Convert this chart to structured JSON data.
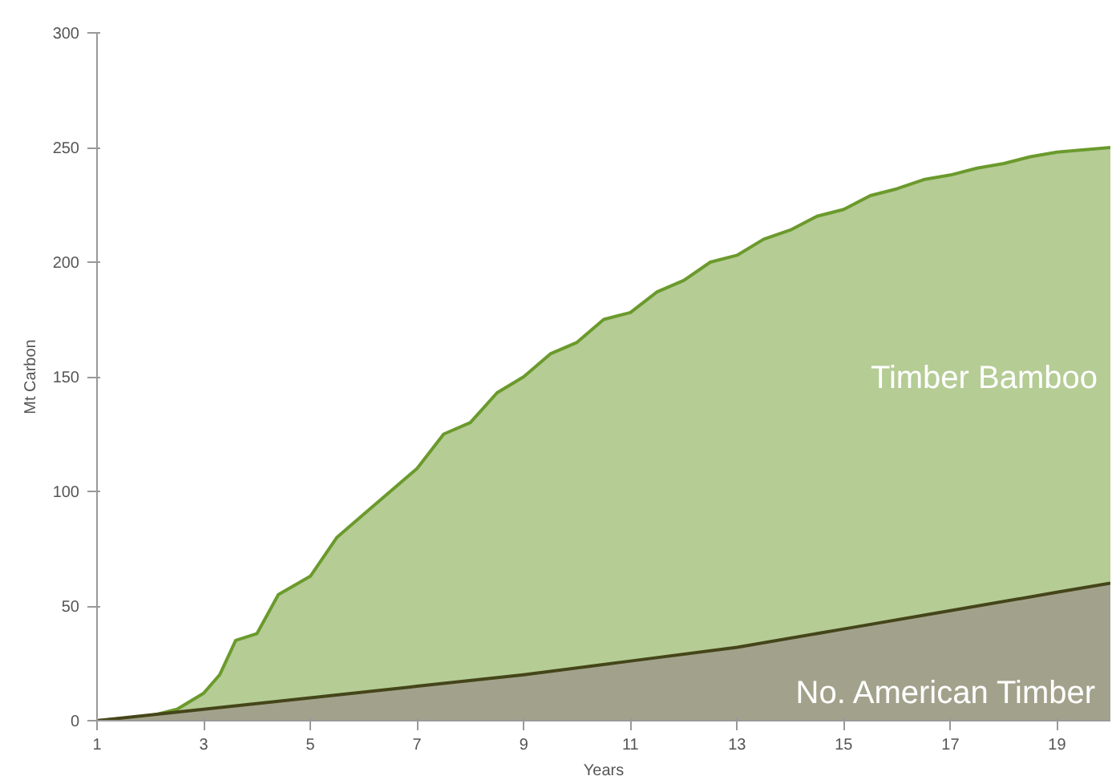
{
  "chart_data": {
    "type": "area",
    "xlabel": "Years",
    "ylabel": "Mt Carbon",
    "xlim": [
      1,
      20
    ],
    "ylim": [
      0,
      300
    ],
    "xticks": [
      1,
      3,
      5,
      7,
      9,
      11,
      13,
      15,
      17,
      19
    ],
    "yticks": [
      0,
      50,
      100,
      150,
      200,
      250,
      300
    ],
    "grid": false,
    "series": [
      {
        "name": "Timber Bamboo",
        "color": "#6b9a2c",
        "x": [
          1,
          2,
          2.5,
          3,
          3.3,
          3.6,
          4,
          4.4,
          5,
          5.5,
          6,
          6.5,
          7,
          7.5,
          8,
          8.5,
          9,
          9.5,
          10,
          10.5,
          11,
          11.5,
          12,
          12.5,
          13,
          13.5,
          14,
          14.5,
          15,
          15.5,
          16,
          16.5,
          17,
          17.5,
          18,
          18.5,
          19,
          20
        ],
        "values": [
          0,
          2,
          5,
          12,
          20,
          35,
          38,
          55,
          63,
          80,
          90,
          100,
          110,
          125,
          130,
          143,
          150,
          160,
          165,
          175,
          178,
          187,
          192,
          200,
          203,
          210,
          214,
          220,
          223,
          229,
          232,
          236,
          238,
          241,
          243,
          246,
          248,
          250
        ]
      },
      {
        "name": "No. American Timber",
        "color": "#45451a",
        "x": [
          1,
          3,
          5,
          7,
          9,
          11,
          13,
          15,
          17,
          19,
          20
        ],
        "values": [
          0,
          5,
          10,
          15,
          20,
          26,
          32,
          40,
          48,
          56,
          60
        ]
      }
    ]
  }
}
